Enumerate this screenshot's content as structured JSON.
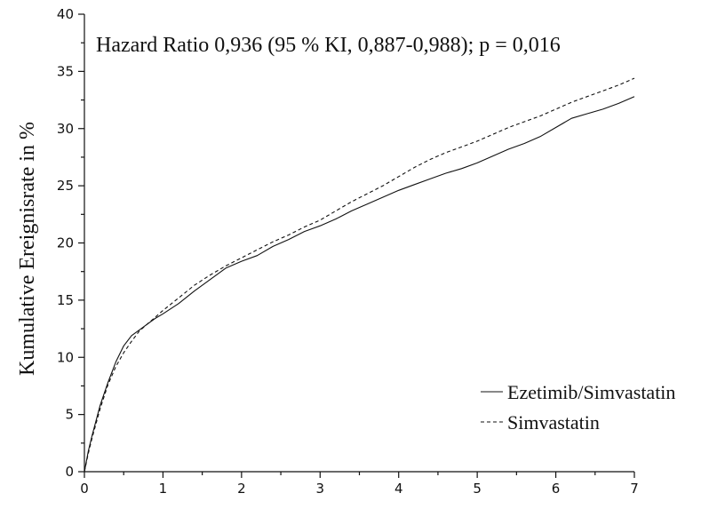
{
  "chart_data": {
    "type": "line",
    "ylabel": "Kumulative Ereignisrate in %",
    "annotation": "Hazard Ratio 0,936 (95 % KI, 0,887-0,988); p = 0,016",
    "xlim": [
      0,
      7
    ],
    "ylim": [
      0,
      40
    ],
    "x_ticks": [
      "0",
      "1",
      "2",
      "3",
      "4",
      "5",
      "6",
      "7"
    ],
    "y_ticks": [
      "0",
      "5",
      "10",
      "15",
      "20",
      "25",
      "30",
      "35",
      "40"
    ],
    "grid": false,
    "legend_position": "bottom-right",
    "series": [
      {
        "name": "Ezetimib/Simvastatin",
        "style": "solid",
        "color": "#111111",
        "points": [
          [
            0,
            0
          ],
          [
            0.05,
            1.8
          ],
          [
            0.1,
            3.2
          ],
          [
            0.2,
            5.8
          ],
          [
            0.3,
            7.8
          ],
          [
            0.4,
            9.6
          ],
          [
            0.5,
            11.0
          ],
          [
            0.6,
            11.9
          ],
          [
            0.7,
            12.4
          ],
          [
            0.8,
            12.9
          ],
          [
            0.9,
            13.4
          ],
          [
            1.0,
            13.8
          ],
          [
            1.2,
            14.7
          ],
          [
            1.4,
            15.8
          ],
          [
            1.6,
            16.8
          ],
          [
            1.8,
            17.8
          ],
          [
            2.0,
            18.4
          ],
          [
            2.2,
            18.9
          ],
          [
            2.4,
            19.7
          ],
          [
            2.6,
            20.3
          ],
          [
            2.8,
            21.0
          ],
          [
            3.0,
            21.5
          ],
          [
            3.2,
            22.1
          ],
          [
            3.4,
            22.8
          ],
          [
            3.6,
            23.4
          ],
          [
            3.8,
            24.0
          ],
          [
            4.0,
            24.6
          ],
          [
            4.2,
            25.1
          ],
          [
            4.4,
            25.6
          ],
          [
            4.6,
            26.1
          ],
          [
            4.8,
            26.5
          ],
          [
            5.0,
            27.0
          ],
          [
            5.2,
            27.6
          ],
          [
            5.4,
            28.2
          ],
          [
            5.6,
            28.7
          ],
          [
            5.8,
            29.3
          ],
          [
            6.0,
            30.1
          ],
          [
            6.2,
            30.9
          ],
          [
            6.4,
            31.3
          ],
          [
            6.6,
            31.7
          ],
          [
            6.8,
            32.2
          ],
          [
            7.0,
            32.8
          ]
        ]
      },
      {
        "name": "Simvastatin",
        "style": "dashed",
        "color": "#111111",
        "points": [
          [
            0,
            0
          ],
          [
            0.05,
            1.6
          ],
          [
            0.1,
            3.0
          ],
          [
            0.2,
            5.5
          ],
          [
            0.3,
            7.6
          ],
          [
            0.4,
            9.2
          ],
          [
            0.5,
            10.4
          ],
          [
            0.6,
            11.4
          ],
          [
            0.7,
            12.3
          ],
          [
            0.8,
            12.9
          ],
          [
            0.9,
            13.5
          ],
          [
            1.0,
            14.1
          ],
          [
            1.2,
            15.2
          ],
          [
            1.4,
            16.3
          ],
          [
            1.6,
            17.2
          ],
          [
            1.8,
            18.0
          ],
          [
            2.0,
            18.7
          ],
          [
            2.2,
            19.4
          ],
          [
            2.4,
            20.1
          ],
          [
            2.6,
            20.7
          ],
          [
            2.8,
            21.4
          ],
          [
            3.0,
            22.0
          ],
          [
            3.2,
            22.8
          ],
          [
            3.4,
            23.6
          ],
          [
            3.6,
            24.3
          ],
          [
            3.8,
            25.0
          ],
          [
            4.0,
            25.8
          ],
          [
            4.2,
            26.6
          ],
          [
            4.4,
            27.3
          ],
          [
            4.6,
            27.9
          ],
          [
            4.8,
            28.4
          ],
          [
            5.0,
            28.9
          ],
          [
            5.2,
            29.5
          ],
          [
            5.4,
            30.1
          ],
          [
            5.6,
            30.6
          ],
          [
            5.8,
            31.1
          ],
          [
            6.0,
            31.7
          ],
          [
            6.2,
            32.3
          ],
          [
            6.4,
            32.8
          ],
          [
            6.6,
            33.3
          ],
          [
            6.8,
            33.8
          ],
          [
            7.0,
            34.4
          ]
        ]
      }
    ]
  }
}
